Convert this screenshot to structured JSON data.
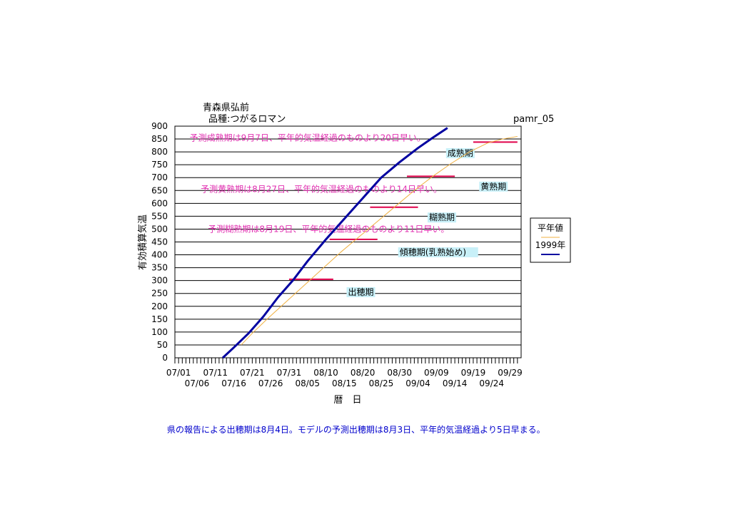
{
  "header": {
    "location": "青森県弘前",
    "variety": "品種:つがるロマン",
    "code": "pamr_05"
  },
  "footer_note": "県の報告による出穂期は8月4日。モデルの予測出穂期は8月3日、平年的気温経過より5日早まる。",
  "colors": {
    "series_1999": "#0000a0",
    "series_normal": "#f0b040",
    "stage_lines": "#e0004a",
    "predict_text": "#e030b0",
    "stage_label_bg": "#c8f0f8",
    "footer_text": "#0000cc"
  },
  "chart_data": {
    "type": "line",
    "title": "",
    "xlabel": "暦　日",
    "ylabel": "有効積算気温",
    "ylim": [
      0,
      900
    ],
    "yticks": [
      0,
      50,
      100,
      150,
      200,
      250,
      300,
      350,
      400,
      450,
      500,
      550,
      600,
      650,
      700,
      750,
      800,
      850,
      900
    ],
    "xlim": [
      "06-30",
      "10-02"
    ],
    "xticks_top": [
      "07/01",
      "07/11",
      "07/21",
      "07/31",
      "08/10",
      "08/20",
      "08/30",
      "09/09",
      "09/19",
      "09/29"
    ],
    "xticks_bottom": [
      "07/06",
      "07/16",
      "07/26",
      "08/05",
      "08/15",
      "08/25",
      "09/04",
      "09/14",
      "09/24"
    ],
    "grid": true,
    "legend_position": "right",
    "series": [
      {
        "name": "平年値",
        "style": "thin",
        "x": [
          "07-18",
          "07-21",
          "07-25",
          "07-30",
          "08-04",
          "08-09",
          "08-14",
          "08-19",
          "08-24",
          "08-29",
          "09-03",
          "09-08",
          "09-13",
          "09-18",
          "09-23",
          "09-27",
          "10-01"
        ],
        "y": [
          50,
          95,
          150,
          215,
          280,
          345,
          410,
          470,
          530,
          590,
          650,
          705,
          755,
          800,
          835,
          850,
          860
        ]
      },
      {
        "name": "1999年",
        "style": "thick",
        "x": [
          "07-13",
          "07-16",
          "07-20",
          "07-24",
          "07-28",
          "08-01",
          "08-05",
          "08-10",
          "08-15",
          "08-20",
          "08-25",
          "08-30",
          "09-04",
          "09-08",
          "09-12"
        ],
        "y": [
          0,
          40,
          95,
          160,
          235,
          300,
          375,
          460,
          540,
          620,
          700,
          760,
          815,
          855,
          893
        ]
      }
    ],
    "stage_markers": [
      {
        "label": "出穂期",
        "line_x": [
          "07-31",
          "08-12"
        ],
        "line_y": 305,
        "label_x": "08-16",
        "label_y": 255
      },
      {
        "label": "傾穂期(乳熟始め)",
        "line_x": [
          "08-11",
          "08-24"
        ],
        "line_y": 460,
        "label_x": "08-30",
        "label_y": 410
      },
      {
        "label": "糊熟期",
        "line_x": [
          "08-22",
          "09-04"
        ],
        "line_y": 585,
        "label_x": "09-07",
        "label_y": 545
      },
      {
        "label": "黄熟期",
        "line_x": [
          "09-01",
          "09-14"
        ],
        "line_y": 705,
        "label_x": "09-21",
        "label_y": 665
      },
      {
        "label": "成熟期",
        "line_x": [
          "09-19",
          "10-01"
        ],
        "line_y": 838,
        "label_x": "09-12",
        "label_y": 795
      }
    ],
    "annotations": [
      {
        "text": "予測成熟期は9月7日、平年的気温経過のものより20日早い。",
        "x": "07-04",
        "y": 855
      },
      {
        "text": "予測黄熟期は8月27日、平年的気温経過のものより14日早い。",
        "x": "07-07",
        "y": 655
      },
      {
        "text": "予測糊熟期は8月19日、平年的気温経過のものより11日早い。",
        "x": "07-09",
        "y": 500
      }
    ]
  }
}
